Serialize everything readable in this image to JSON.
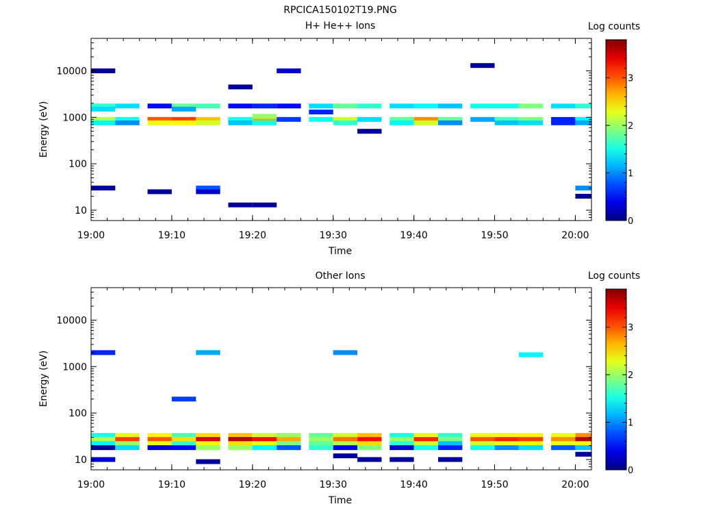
{
  "figure": {
    "title": "RPCICA150102T19.PNG"
  },
  "chart_data": [
    {
      "type": "heatmap",
      "title": "H+ He++ Ions",
      "xlabel": "Time",
      "ylabel": "Energy (eV)",
      "x_tick_labels": [
        "19:00",
        "19:10",
        "19:20",
        "19:30",
        "19:40",
        "19:50",
        "20:00"
      ],
      "x_range": [
        "19:00",
        "20:02"
      ],
      "y_scale": "log",
      "y_range": [
        6,
        50000
      ],
      "y_tick_labels": [
        "10",
        "100",
        "1000",
        "10000"
      ],
      "colorbar": {
        "label": "Log counts",
        "range": [
          0,
          3.8
        ],
        "tick_labels": [
          "0",
          "1",
          "2",
          "3"
        ]
      },
      "time_columns": [
        "19:00",
        "19:03",
        "19:07",
        "19:10",
        "19:13",
        "19:17",
        "19:20",
        "19:23",
        "19:27",
        "19:30",
        "19:33",
        "19:37",
        "19:40",
        "19:43",
        "19:47",
        "19:50",
        "19:53",
        "19:57",
        "20:00"
      ],
      "cells": [
        {
          "col": 0,
          "e": 1750,
          "v": 1.6
        },
        {
          "col": 0,
          "e": 1500,
          "v": 1.3
        },
        {
          "col": 0,
          "e": 900,
          "v": 2.1
        },
        {
          "col": 0,
          "e": 760,
          "v": 1.4
        },
        {
          "col": 0,
          "e": 10000,
          "v": 0.1
        },
        {
          "col": 0,
          "e": 30,
          "v": 0.1
        },
        {
          "col": 1,
          "e": 1750,
          "v": 1.3
        },
        {
          "col": 1,
          "e": 900,
          "v": 1.5
        },
        {
          "col": 1,
          "e": 760,
          "v": 1.0
        },
        {
          "col": 2,
          "e": 900,
          "v": 3.0
        },
        {
          "col": 2,
          "e": 760,
          "v": 2.3
        },
        {
          "col": 2,
          "e": 1750,
          "v": 0.5
        },
        {
          "col": 2,
          "e": 25,
          "v": 0.1
        },
        {
          "col": 3,
          "e": 900,
          "v": 3.1
        },
        {
          "col": 3,
          "e": 760,
          "v": 2.4
        },
        {
          "col": 3,
          "e": 1750,
          "v": 1.8
        },
        {
          "col": 3,
          "e": 1500,
          "v": 1.1
        },
        {
          "col": 4,
          "e": 900,
          "v": 2.6
        },
        {
          "col": 4,
          "e": 760,
          "v": 2.2
        },
        {
          "col": 4,
          "e": 1750,
          "v": 1.7
        },
        {
          "col": 4,
          "e": 30,
          "v": 0.8
        },
        {
          "col": 4,
          "e": 25,
          "v": 0.3
        },
        {
          "col": 5,
          "e": 900,
          "v": 1.5
        },
        {
          "col": 5,
          "e": 760,
          "v": 1.2
        },
        {
          "col": 5,
          "e": 1750,
          "v": 0.5
        },
        {
          "col": 5,
          "e": 4500,
          "v": 0.1
        },
        {
          "col": 5,
          "e": 13,
          "v": 0.1
        },
        {
          "col": 6,
          "e": 900,
          "v": 2.7
        },
        {
          "col": 6,
          "e": 1050,
          "v": 2.0
        },
        {
          "col": 6,
          "e": 760,
          "v": 1.5
        },
        {
          "col": 6,
          "e": 1750,
          "v": 0.6
        },
        {
          "col": 6,
          "e": 13,
          "v": 0.1
        },
        {
          "col": 7,
          "e": 900,
          "v": 0.7
        },
        {
          "col": 7,
          "e": 1750,
          "v": 0.5
        },
        {
          "col": 7,
          "e": 10000,
          "v": 0.3
        },
        {
          "col": 8,
          "e": 900,
          "v": 1.5
        },
        {
          "col": 8,
          "e": 1750,
          "v": 1.3
        },
        {
          "col": 8,
          "e": 1300,
          "v": 0.6
        },
        {
          "col": 9,
          "e": 900,
          "v": 2.2
        },
        {
          "col": 9,
          "e": 1750,
          "v": 1.8
        },
        {
          "col": 9,
          "e": 760,
          "v": 1.6
        },
        {
          "col": 10,
          "e": 900,
          "v": 1.3
        },
        {
          "col": 10,
          "e": 1750,
          "v": 1.6
        },
        {
          "col": 10,
          "e": 500,
          "v": 0.1
        },
        {
          "col": 11,
          "e": 900,
          "v": 1.8
        },
        {
          "col": 11,
          "e": 1750,
          "v": 1.3
        },
        {
          "col": 11,
          "e": 760,
          "v": 1.4
        },
        {
          "col": 12,
          "e": 900,
          "v": 2.8
        },
        {
          "col": 12,
          "e": 760,
          "v": 2.2
        },
        {
          "col": 12,
          "e": 1750,
          "v": 1.4
        },
        {
          "col": 13,
          "e": 900,
          "v": 1.8
        },
        {
          "col": 13,
          "e": 1750,
          "v": 1.2
        },
        {
          "col": 13,
          "e": 760,
          "v": 1.0
        },
        {
          "col": 14,
          "e": 900,
          "v": 1.1
        },
        {
          "col": 14,
          "e": 1750,
          "v": 1.5
        },
        {
          "col": 14,
          "e": 13000,
          "v": 0.1
        },
        {
          "col": 15,
          "e": 900,
          "v": 1.7
        },
        {
          "col": 15,
          "e": 1750,
          "v": 1.5
        },
        {
          "col": 15,
          "e": 760,
          "v": 1.2
        },
        {
          "col": 16,
          "e": 900,
          "v": 1.9
        },
        {
          "col": 16,
          "e": 1750,
          "v": 1.9
        },
        {
          "col": 16,
          "e": 760,
          "v": 1.3
        },
        {
          "col": 17,
          "e": 900,
          "v": 0.6
        },
        {
          "col": 17,
          "e": 1750,
          "v": 1.3
        },
        {
          "col": 17,
          "e": 760,
          "v": 0.6
        },
        {
          "col": 18,
          "e": 900,
          "v": 1.4
        },
        {
          "col": 18,
          "e": 1750,
          "v": 1.6
        },
        {
          "col": 18,
          "e": 760,
          "v": 1.1
        },
        {
          "col": 18,
          "e": 30,
          "v": 1.0
        },
        {
          "col": 18,
          "e": 20,
          "v": 0.1
        }
      ]
    },
    {
      "type": "heatmap",
      "title": "Other Ions",
      "xlabel": "Time",
      "ylabel": "Energy (eV)",
      "x_tick_labels": [
        "19:00",
        "19:10",
        "19:20",
        "19:30",
        "19:40",
        "19:50",
        "20:00"
      ],
      "x_range": [
        "19:00",
        "20:02"
      ],
      "y_scale": "log",
      "y_range": [
        6,
        50000
      ],
      "y_tick_labels": [
        "10",
        "100",
        "1000",
        "10000"
      ],
      "colorbar": {
        "label": "Log counts",
        "range": [
          0,
          3.8
        ],
        "tick_labels": [
          "0",
          "1",
          "2",
          "3"
        ]
      },
      "time_columns": [
        "19:00",
        "19:03",
        "19:07",
        "19:10",
        "19:13",
        "19:17",
        "19:20",
        "19:23",
        "19:27",
        "19:30",
        "19:33",
        "19:37",
        "19:40",
        "19:43",
        "19:47",
        "19:50",
        "19:53",
        "19:57",
        "20:00"
      ],
      "cells": [
        {
          "col": 0,
          "e": 33,
          "v": 1.5
        },
        {
          "col": 0,
          "e": 27,
          "v": 2.1
        },
        {
          "col": 0,
          "e": 22,
          "v": 1.4
        },
        {
          "col": 0,
          "e": 18,
          "v": 0.1
        },
        {
          "col": 0,
          "e": 10,
          "v": 0.3
        },
        {
          "col": 0,
          "e": 2000,
          "v": 0.6
        },
        {
          "col": 1,
          "e": 33,
          "v": 2.3
        },
        {
          "col": 1,
          "e": 27,
          "v": 3.1
        },
        {
          "col": 1,
          "e": 22,
          "v": 2.0
        },
        {
          "col": 1,
          "e": 18,
          "v": 1.3
        },
        {
          "col": 2,
          "e": 33,
          "v": 2.4
        },
        {
          "col": 2,
          "e": 27,
          "v": 3.0
        },
        {
          "col": 2,
          "e": 22,
          "v": 2.3
        },
        {
          "col": 2,
          "e": 18,
          "v": 0.3
        },
        {
          "col": 3,
          "e": 33,
          "v": 1.7
        },
        {
          "col": 3,
          "e": 27,
          "v": 2.5
        },
        {
          "col": 3,
          "e": 22,
          "v": 1.6
        },
        {
          "col": 3,
          "e": 18,
          "v": 0.5
        },
        {
          "col": 3,
          "e": 200,
          "v": 0.7
        },
        {
          "col": 4,
          "e": 33,
          "v": 2.5
        },
        {
          "col": 4,
          "e": 27,
          "v": 3.5
        },
        {
          "col": 4,
          "e": 22,
          "v": 2.4
        },
        {
          "col": 4,
          "e": 18,
          "v": 2.0
        },
        {
          "col": 4,
          "e": 9,
          "v": 0.1
        },
        {
          "col": 4,
          "e": 2000,
          "v": 1.1
        },
        {
          "col": 5,
          "e": 33,
          "v": 2.6
        },
        {
          "col": 5,
          "e": 27,
          "v": 3.6
        },
        {
          "col": 5,
          "e": 22,
          "v": 2.5
        },
        {
          "col": 5,
          "e": 18,
          "v": 2.0
        },
        {
          "col": 6,
          "e": 33,
          "v": 2.2
        },
        {
          "col": 6,
          "e": 27,
          "v": 3.3
        },
        {
          "col": 6,
          "e": 22,
          "v": 2.3
        },
        {
          "col": 6,
          "e": 18,
          "v": 1.4
        },
        {
          "col": 7,
          "e": 33,
          "v": 2.0
        },
        {
          "col": 7,
          "e": 27,
          "v": 2.7
        },
        {
          "col": 7,
          "e": 22,
          "v": 1.9
        },
        {
          "col": 7,
          "e": 18,
          "v": 0.8
        },
        {
          "col": 8,
          "e": 33,
          "v": 1.8
        },
        {
          "col": 8,
          "e": 27,
          "v": 2.0
        },
        {
          "col": 8,
          "e": 22,
          "v": 1.8
        },
        {
          "col": 8,
          "e": 18,
          "v": 1.6
        },
        {
          "col": 9,
          "e": 33,
          "v": 2.2
        },
        {
          "col": 9,
          "e": 27,
          "v": 2.9
        },
        {
          "col": 9,
          "e": 22,
          "v": 2.1
        },
        {
          "col": 9,
          "e": 18,
          "v": 0.4
        },
        {
          "col": 9,
          "e": 12,
          "v": 0.1
        },
        {
          "col": 9,
          "e": 2000,
          "v": 1.0
        },
        {
          "col": 10,
          "e": 33,
          "v": 2.6
        },
        {
          "col": 10,
          "e": 27,
          "v": 3.3
        },
        {
          "col": 10,
          "e": 22,
          "v": 2.5
        },
        {
          "col": 10,
          "e": 18,
          "v": 1.9
        },
        {
          "col": 10,
          "e": 10,
          "v": 0.1
        },
        {
          "col": 11,
          "e": 33,
          "v": 1.5
        },
        {
          "col": 11,
          "e": 27,
          "v": 2.0
        },
        {
          "col": 11,
          "e": 22,
          "v": 1.6
        },
        {
          "col": 11,
          "e": 18,
          "v": 0.3
        },
        {
          "col": 11,
          "e": 10,
          "v": 0.1
        },
        {
          "col": 12,
          "e": 33,
          "v": 2.3
        },
        {
          "col": 12,
          "e": 27,
          "v": 3.2
        },
        {
          "col": 12,
          "e": 22,
          "v": 2.2
        },
        {
          "col": 12,
          "e": 18,
          "v": 1.5
        },
        {
          "col": 13,
          "e": 33,
          "v": 1.6
        },
        {
          "col": 13,
          "e": 27,
          "v": 1.9
        },
        {
          "col": 13,
          "e": 22,
          "v": 1.2
        },
        {
          "col": 13,
          "e": 18,
          "v": 0.6
        },
        {
          "col": 13,
          "e": 10,
          "v": 0.1
        },
        {
          "col": 14,
          "e": 33,
          "v": 2.3
        },
        {
          "col": 14,
          "e": 27,
          "v": 3.0
        },
        {
          "col": 14,
          "e": 22,
          "v": 2.2
        },
        {
          "col": 14,
          "e": 18,
          "v": 1.5
        },
        {
          "col": 15,
          "e": 33,
          "v": 2.4
        },
        {
          "col": 15,
          "e": 27,
          "v": 3.2
        },
        {
          "col": 15,
          "e": 22,
          "v": 2.3
        },
        {
          "col": 15,
          "e": 18,
          "v": 1.0
        },
        {
          "col": 16,
          "e": 33,
          "v": 2.4
        },
        {
          "col": 16,
          "e": 27,
          "v": 3.1
        },
        {
          "col": 16,
          "e": 22,
          "v": 2.4
        },
        {
          "col": 16,
          "e": 18,
          "v": 1.3
        },
        {
          "col": 16,
          "e": 1800,
          "v": 1.4
        },
        {
          "col": 17,
          "e": 33,
          "v": 2.3
        },
        {
          "col": 17,
          "e": 27,
          "v": 2.8
        },
        {
          "col": 17,
          "e": 22,
          "v": 2.3
        },
        {
          "col": 17,
          "e": 18,
          "v": 0.8
        },
        {
          "col": 18,
          "e": 33,
          "v": 2.8
        },
        {
          "col": 18,
          "e": 27,
          "v": 3.6
        },
        {
          "col": 18,
          "e": 22,
          "v": 2.4
        },
        {
          "col": 18,
          "e": 18,
          "v": 1.2
        },
        {
          "col": 18,
          "e": 13,
          "v": 0.1
        }
      ]
    }
  ]
}
